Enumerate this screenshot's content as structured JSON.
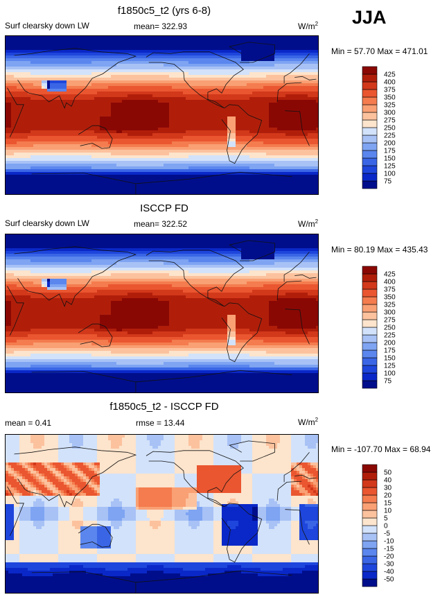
{
  "season": "JJA",
  "units_label": "W/m",
  "units_sup": "2",
  "colors": {
    "abs": [
      "#000e8c",
      "#0a28c8",
      "#1e46dc",
      "#3a66e6",
      "#5a86ee",
      "#7ea4f2",
      "#a8c2f6",
      "#d2e2fa",
      "#fde4cc",
      "#fcc29e",
      "#f9a074",
      "#f47c4e",
      "#ea5630",
      "#d2381a",
      "#b01e0a",
      "#8a0804"
    ],
    "diff": [
      "#000e8c",
      "#0a28c8",
      "#1e46dc",
      "#3a66e6",
      "#5a86ee",
      "#7ea4f2",
      "#a8c2f6",
      "#d2e2fa",
      "#fde4cc",
      "#fcc29e",
      "#f9a074",
      "#f47c4e",
      "#ea5630",
      "#d2381a",
      "#b01e0a",
      "#8a0804"
    ]
  },
  "panels": [
    {
      "title": "f1850c5_t2 (yrs 6-8)",
      "left_label": "Surf clearsky down LW",
      "center_label": "mean= 322.93",
      "minmax": "Min =  57.70 Max = 471.01"
    },
    {
      "title": "ISCCP FD",
      "left_label": "Surf clearsky down LW",
      "center_label": "mean= 322.52",
      "minmax": "Min =  80.19 Max = 435.43"
    },
    {
      "title": "f1850c5_t2 - ISCCP FD",
      "left_label": "mean =   0.41",
      "center_label": "rmse =   13.44",
      "minmax": "Min = -107.70 Max =  68.94"
    }
  ],
  "chart_data": [
    {
      "type": "heatmap",
      "title": "f1850c5_t2 (yrs 6-8)",
      "variable": "Surf clearsky down LW",
      "units": "W/m2",
      "mean": 322.93,
      "min": 57.7,
      "max": 471.01,
      "colorbar_levels": [
        75,
        100,
        125,
        150,
        175,
        200,
        225,
        250,
        275,
        300,
        325,
        350,
        375,
        400,
        425
      ]
    },
    {
      "type": "heatmap",
      "title": "ISCCP FD",
      "variable": "Surf clearsky down LW",
      "units": "W/m2",
      "mean": 322.52,
      "min": 80.19,
      "max": 435.43,
      "colorbar_levels": [
        75,
        100,
        125,
        150,
        175,
        200,
        225,
        250,
        275,
        300,
        325,
        350,
        375,
        400,
        425
      ]
    },
    {
      "type": "heatmap",
      "title": "f1850c5_t2 - ISCCP FD",
      "units": "W/m2",
      "mean": 0.41,
      "rmse": 13.44,
      "min": -107.7,
      "max": 68.94,
      "colorbar_levels": [
        -50,
        -40,
        -30,
        -20,
        -15,
        -10,
        -5,
        0,
        5,
        10,
        15,
        20,
        30,
        40,
        50
      ]
    }
  ]
}
